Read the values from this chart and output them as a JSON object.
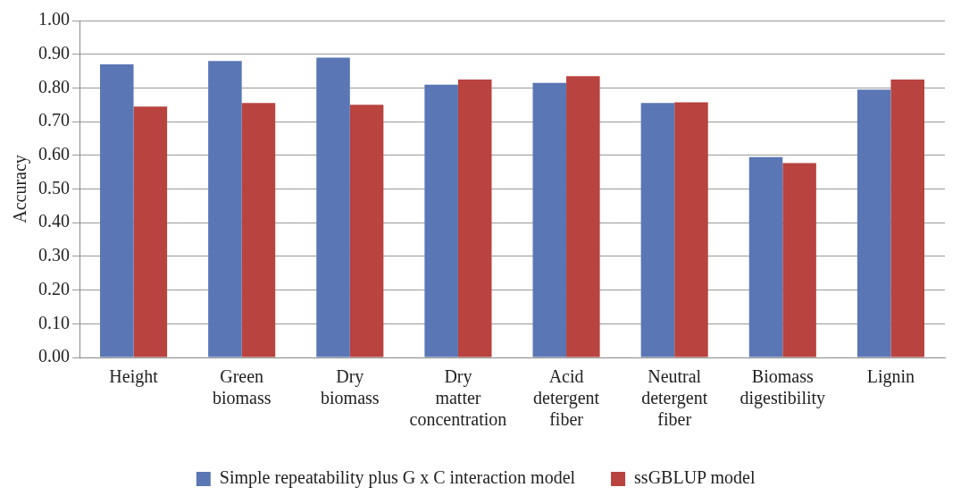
{
  "chart_data": {
    "type": "bar",
    "ylabel": "Accuracy",
    "categories": [
      "Height",
      "Green biomass",
      "Dry biomass",
      "Dry matter concentration",
      "Acid detergent fiber",
      "Neutral detergent fiber",
      "Biomass digestibility",
      "Lignin"
    ],
    "series": [
      {
        "name": "Simple repeatability plus G x C interaction model",
        "color": "#5b76b4",
        "values": [
          0.87,
          0.88,
          0.89,
          0.81,
          0.815,
          0.755,
          0.595,
          0.795
        ]
      },
      {
        "name": "ssGBLUP model",
        "color": "#b8433f",
        "values": [
          0.745,
          0.755,
          0.75,
          0.825,
          0.835,
          0.757,
          0.577,
          0.825
        ]
      }
    ],
    "ylim": [
      0,
      1
    ],
    "yticks": [
      {
        "value": 0,
        "label": "0.00"
      },
      {
        "value": 0.1,
        "label": "0.10"
      },
      {
        "value": 0.2,
        "label": "0.20"
      },
      {
        "value": 0.3,
        "label": "0.30"
      },
      {
        "value": 0.4,
        "label": "0.40"
      },
      {
        "value": 0.5,
        "label": "0.50"
      },
      {
        "value": 0.6,
        "label": "0.60"
      },
      {
        "value": 0.7,
        "label": "0.70"
      },
      {
        "value": 0.8,
        "label": "0.80"
      },
      {
        "value": 0.9,
        "label": "0.90"
      },
      {
        "value": 1,
        "label": "1.00"
      }
    ],
    "grid": "y",
    "legend": "bottom"
  }
}
